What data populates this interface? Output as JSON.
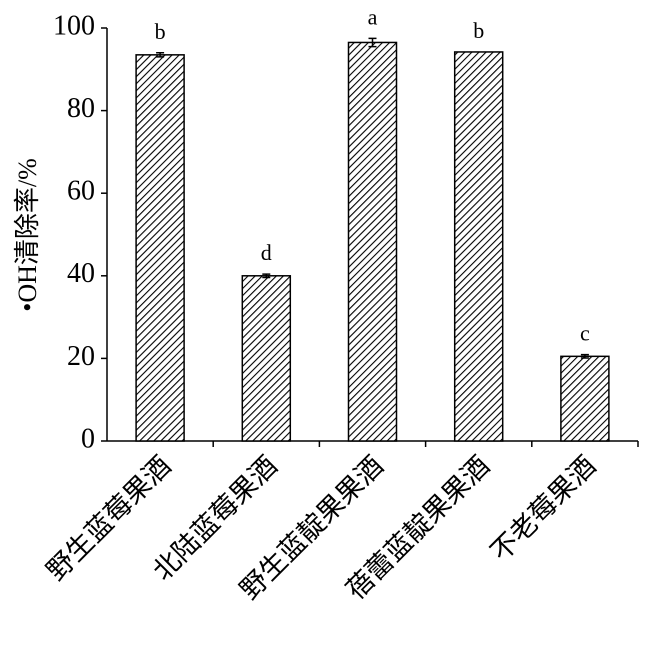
{
  "chart_data": {
    "type": "bar",
    "ylabel": "•OH清除率/%",
    "categories": [
      "野生蓝莓果酒",
      "北陆蓝莓果酒",
      "野生蓝靛果果酒",
      "蓓蕾蓝靛果果酒",
      "不老莓果酒"
    ],
    "values": [
      93.5,
      40,
      96.5,
      94.2,
      20.5
    ],
    "errors": [
      0.5,
      0.4,
      1.0,
      0,
      0.4
    ],
    "letters": [
      "b",
      "d",
      "a",
      "b",
      "c"
    ],
    "color": "#000000",
    "ylim": [
      0,
      100
    ],
    "yticks": [
      0,
      20,
      40,
      60,
      80,
      100
    ],
    "grid": false
  }
}
